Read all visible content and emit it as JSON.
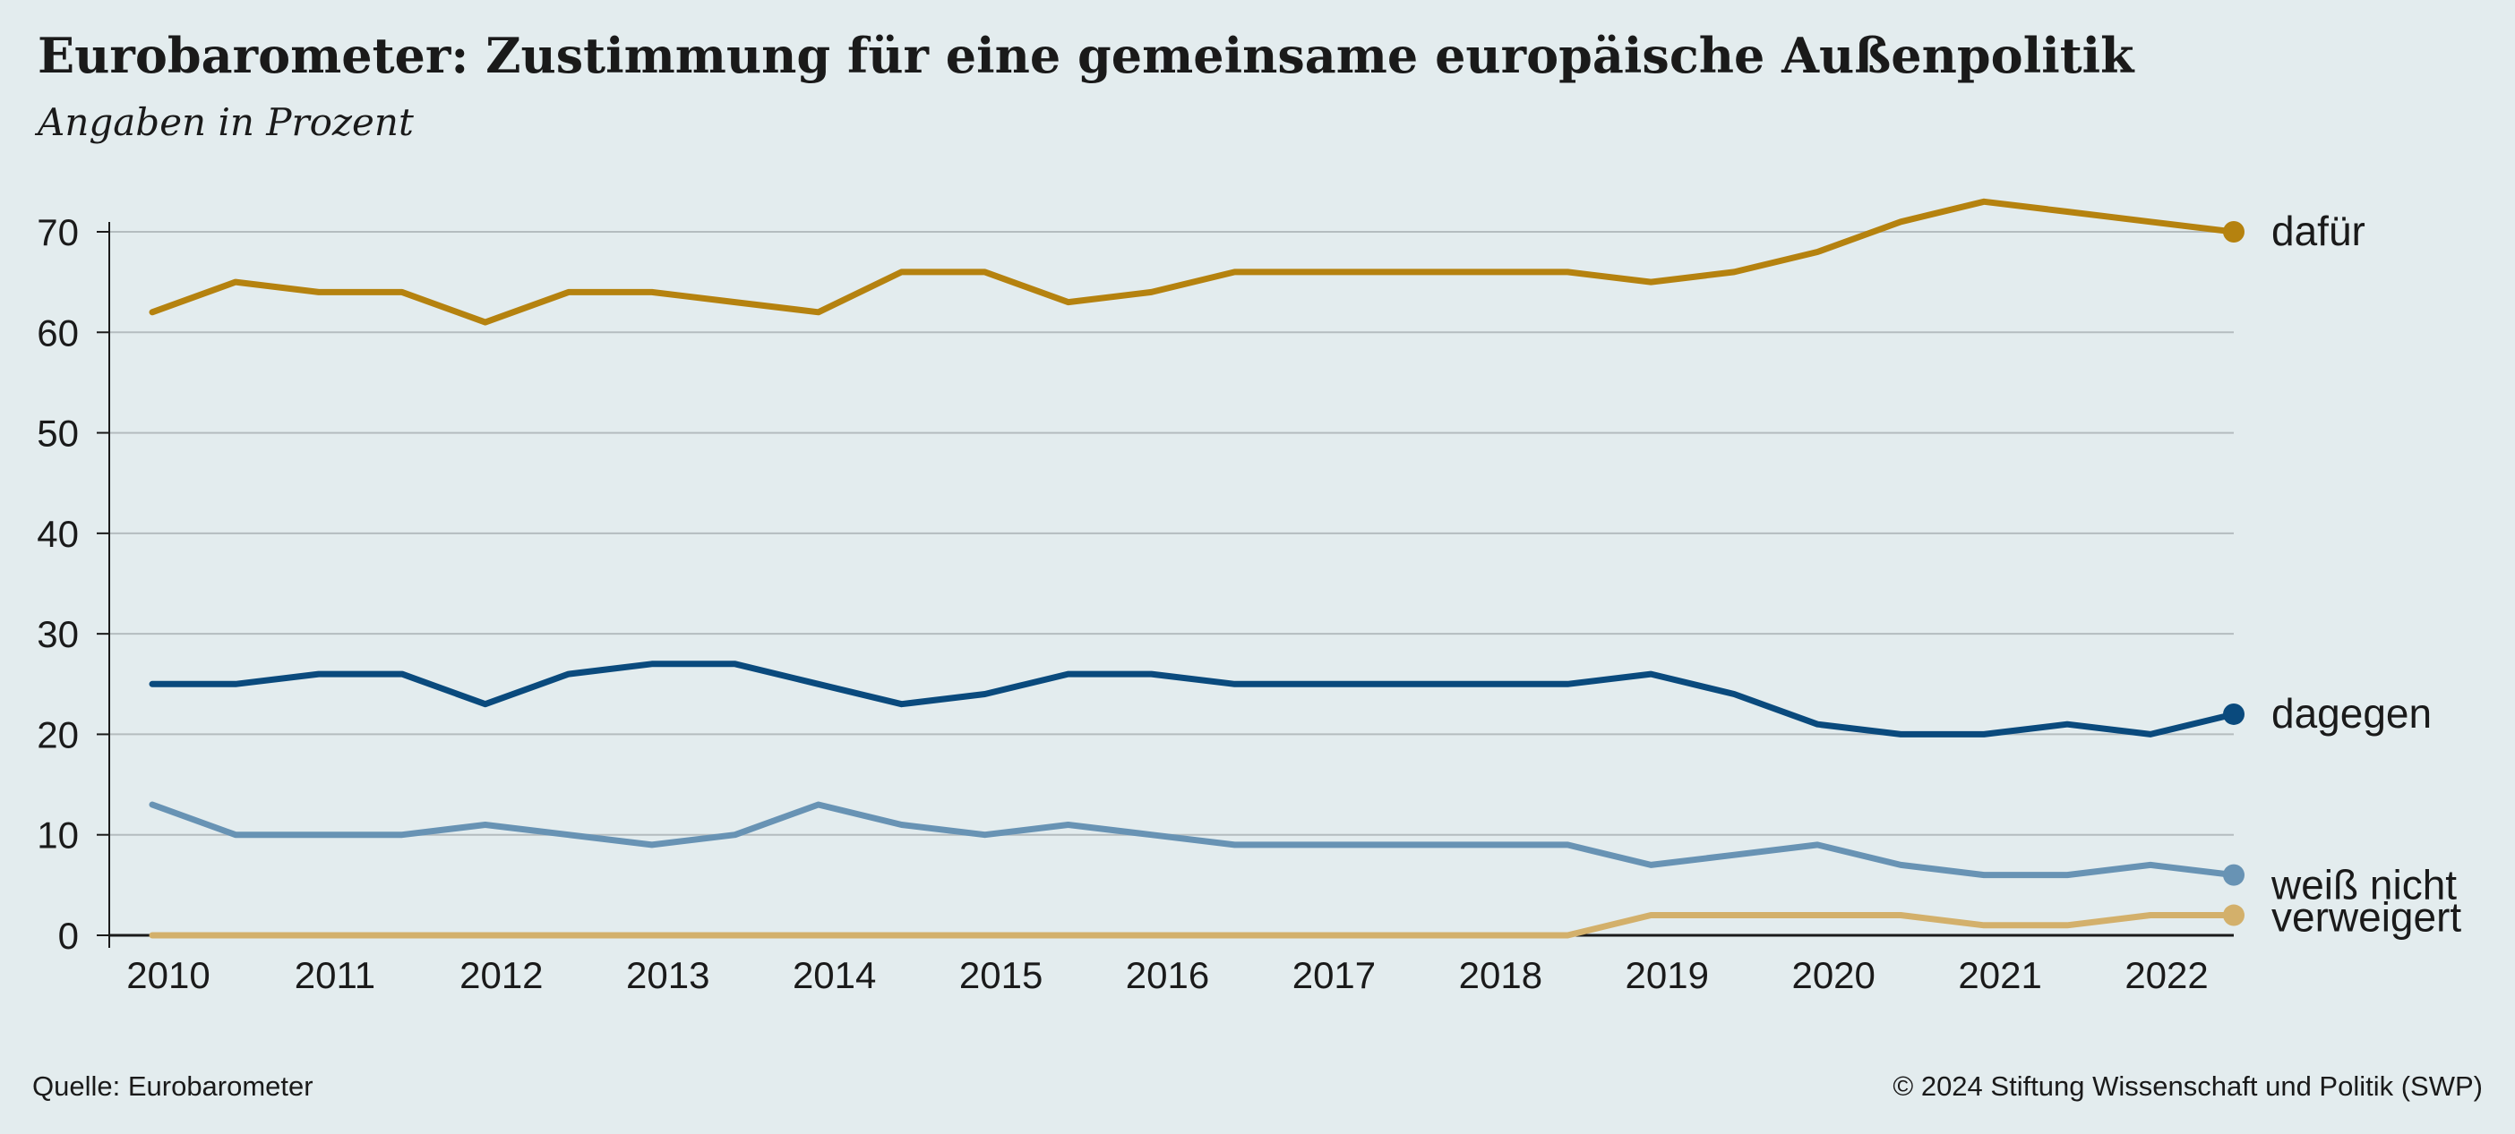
{
  "title": "Eurobarometer: Zustimmung für eine gemeinsame europäische Außenpolitik",
  "subtitle": "Angaben in Prozent",
  "footer": {
    "source": "Quelle: Eurobarometer",
    "copyright": "© 2024 Stiftung Wissenschaft und Politik (SWP)"
  },
  "chart_data": {
    "type": "line",
    "title": "Eurobarometer: Zustimmung für eine gemeinsame europäische Außenpolitik",
    "subtitle": "Angaben in Prozent",
    "x_tick_labels": [
      "2010",
      "2011",
      "2012",
      "2013",
      "2014",
      "2015",
      "2016",
      "2017",
      "2018",
      "2019",
      "2020",
      "2021",
      "2022"
    ],
    "x": [
      2010.0,
      2010.5,
      2011.0,
      2011.5,
      2012.0,
      2012.5,
      2013.0,
      2013.5,
      2014.0,
      2014.5,
      2015.0,
      2015.5,
      2016.0,
      2016.5,
      2017.0,
      2017.5,
      2018.0,
      2018.5,
      2019.0,
      2019.5,
      2020.0,
      2020.5,
      2021.0,
      2021.5,
      2022.0,
      2022.5
    ],
    "xlim": [
      2010.0,
      2022.5
    ],
    "ylim": [
      0,
      70
    ],
    "y_ticks": [
      0,
      10,
      20,
      30,
      40,
      50,
      60,
      70
    ],
    "grid": true,
    "legend": "right-end labels",
    "series": [
      {
        "name": "dafür",
        "color": "#b5820f",
        "values": [
          62,
          65,
          64,
          64,
          61,
          64,
          64,
          63,
          62,
          66,
          66,
          63,
          64,
          66,
          66,
          66,
          66,
          66,
          65,
          66,
          68,
          71,
          73,
          72,
          71,
          70
        ]
      },
      {
        "name": "dagegen",
        "color": "#0a4a7d",
        "values": [
          25,
          25,
          26,
          26,
          23,
          26,
          27,
          27,
          25,
          23,
          24,
          26,
          26,
          25,
          25,
          25,
          25,
          25,
          26,
          24,
          21,
          20,
          20,
          21,
          20,
          22
        ]
      },
      {
        "name": "weiß nicht",
        "color": "#6893b4",
        "values": [
          13,
          10,
          10,
          10,
          11,
          10,
          9,
          10,
          13,
          11,
          10,
          11,
          10,
          9,
          9,
          9,
          9,
          9,
          7,
          8,
          9,
          7,
          6,
          6,
          7,
          6
        ]
      },
      {
        "name": "verweigert",
        "color": "#d3b06b",
        "values": [
          0,
          0,
          0,
          0,
          0,
          0,
          0,
          0,
          0,
          0,
          0,
          0,
          0,
          0,
          0,
          0,
          0,
          0,
          2,
          2,
          2,
          2,
          1,
          1,
          2,
          2
        ]
      }
    ]
  }
}
